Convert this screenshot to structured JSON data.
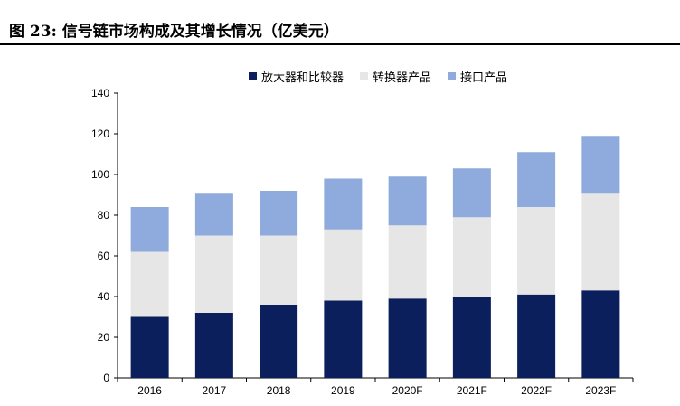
{
  "header": {
    "title": "图 23:  信号链市场构成及其增长情况（亿美元）"
  },
  "chart_data": {
    "type": "bar",
    "stacked": true,
    "title": "",
    "xlabel": "",
    "ylabel": "",
    "ylim": [
      0,
      140
    ],
    "yticks": [
      0,
      20,
      40,
      60,
      80,
      100,
      120,
      140
    ],
    "grid": false,
    "legend_position": "top",
    "categories": [
      "2016",
      "2017",
      "2018",
      "2019",
      "2020F",
      "2021F",
      "2022F",
      "2023F"
    ],
    "series": [
      {
        "name": "放大器和比较器",
        "color": "#0a1f5c",
        "values": [
          30,
          32,
          36,
          38,
          39,
          40,
          41,
          43
        ]
      },
      {
        "name": "转换器产品",
        "color": "#e6e6e6",
        "values": [
          32,
          38,
          34,
          35,
          36,
          39,
          43,
          48
        ]
      },
      {
        "name": "接口产品",
        "color": "#8faadc",
        "values": [
          22,
          21,
          22,
          25,
          24,
          24,
          27,
          28
        ]
      }
    ]
  }
}
